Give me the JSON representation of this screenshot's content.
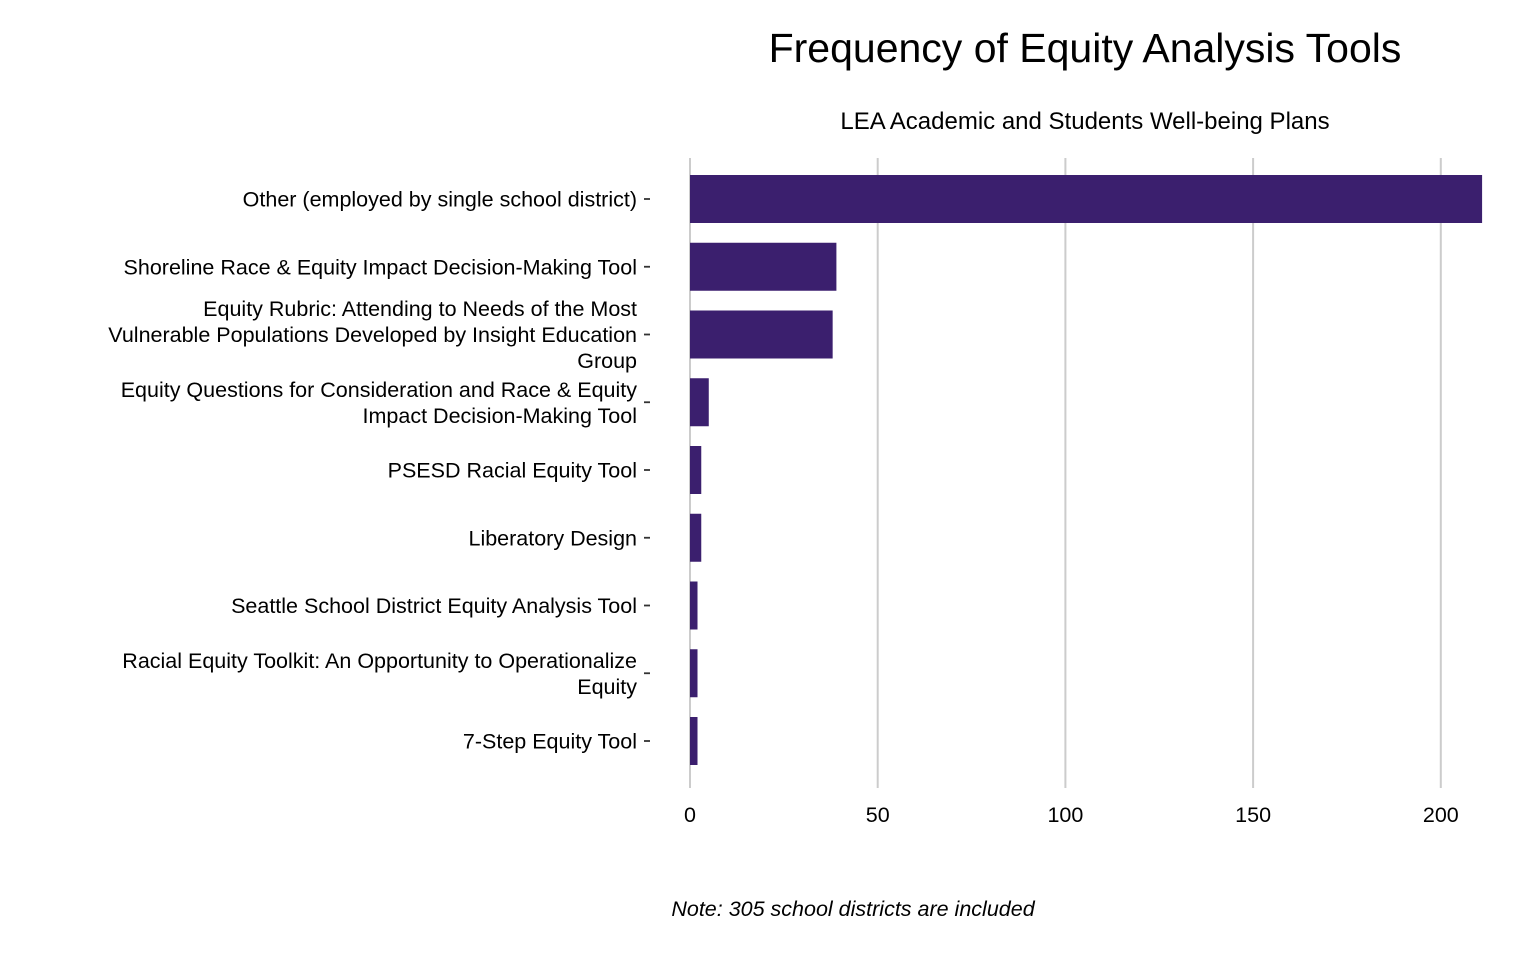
{
  "chart_data": {
    "type": "bar",
    "orientation": "horizontal",
    "title": "Frequency of Equity Analysis Tools",
    "subtitle": "LEA Academic and Students Well-being Plans",
    "note": "Note: 305 school districts are included",
    "categories": [
      [
        "Other (employed by single school district)"
      ],
      [
        "Shoreline Race & Equity Impact Decision-Making Tool"
      ],
      [
        "Equity Rubric: Attending to Needs of the Most",
        "Vulnerable Populations Developed by Insight Education",
        "Group"
      ],
      [
        "Equity Questions for Consideration and Race & Equity",
        "Impact Decision-Making Tool"
      ],
      [
        "PSESD Racial Equity Tool"
      ],
      [
        "Liberatory Design"
      ],
      [
        "Seattle School District Equity Analysis Tool"
      ],
      [
        "Racial Equity Toolkit: An Opportunity to Operationalize",
        "Equity"
      ],
      [
        "7-Step Equity Tool"
      ]
    ],
    "values": [
      211,
      39,
      38,
      5,
      3,
      3,
      2,
      2,
      2
    ],
    "xticks": [
      0,
      50,
      100,
      150,
      200
    ],
    "xlim": [
      0,
      211
    ],
    "grid": "vertical",
    "bar_color": "#3b1f6e",
    "grid_color": "#cccccc"
  }
}
